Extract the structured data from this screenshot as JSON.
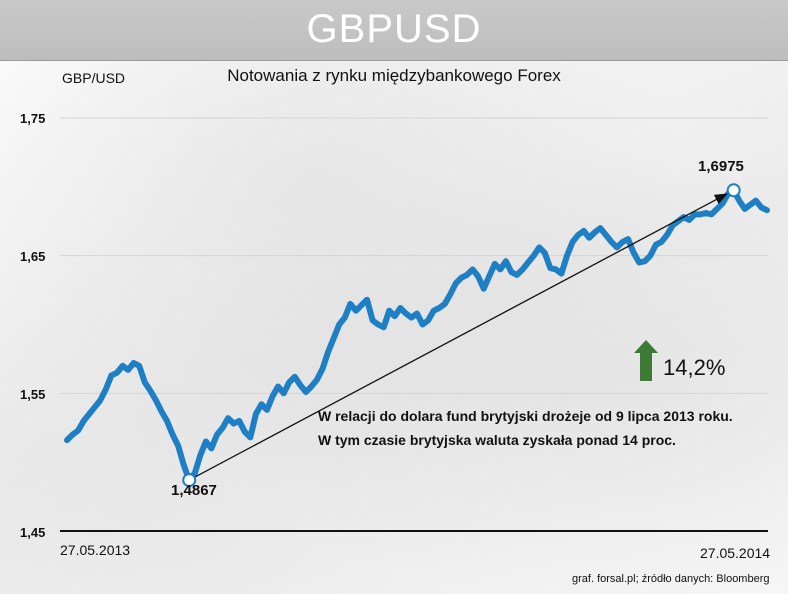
{
  "header": {
    "title": "GBPUSD"
  },
  "chart_data": {
    "type": "line",
    "title": "Notowania z rynku międzybankowego Forex",
    "ylabel": "GBP/USD",
    "ylim": [
      1.45,
      1.75
    ],
    "yticks": [
      "1,75",
      "1,65",
      "1,55",
      "1,45"
    ],
    "xlabel": "",
    "x_start_label": "27.05.2013",
    "x_end_label": "27.05.2014",
    "grid": "horizontal",
    "line_color": "#1f7fc4",
    "series": [
      {
        "values": [
          1.516,
          1.52,
          1.523,
          1.53,
          1.535,
          1.54,
          1.545,
          1.553,
          1.563,
          1.565,
          1.57,
          1.567,
          1.572,
          1.57,
          1.558,
          1.552,
          1.545,
          1.537,
          1.53,
          1.52,
          1.512,
          1.498,
          1.487,
          1.492,
          1.505,
          1.515,
          1.51,
          1.52,
          1.525,
          1.532,
          1.528,
          1.53,
          1.522,
          1.518,
          1.535,
          1.542,
          1.538,
          1.548,
          1.555,
          1.55,
          1.558,
          1.562,
          1.556,
          1.551,
          1.555,
          1.56,
          1.568,
          1.58,
          1.59,
          1.6,
          1.605,
          1.615,
          1.61,
          1.614,
          1.618,
          1.603,
          1.6,
          1.598,
          1.61,
          1.606,
          1.612,
          1.608,
          1.605,
          1.608,
          1.6,
          1.603,
          1.61,
          1.612,
          1.615,
          1.622,
          1.63,
          1.634,
          1.636,
          1.64,
          1.635,
          1.626,
          1.635,
          1.644,
          1.64,
          1.646,
          1.638,
          1.636,
          1.64,
          1.645,
          1.65,
          1.656,
          1.652,
          1.641,
          1.64,
          1.637,
          1.65,
          1.66,
          1.665,
          1.668,
          1.663,
          1.667,
          1.67,
          1.665,
          1.66,
          1.656,
          1.66,
          1.662,
          1.652,
          1.645,
          1.646,
          1.65,
          1.658,
          1.66,
          1.665,
          1.672,
          1.675,
          1.678,
          1.676,
          1.68,
          1.68,
          1.681,
          1.68,
          1.684,
          1.688,
          1.695,
          1.6975,
          1.69,
          1.684,
          1.687,
          1.69,
          1.685,
          1.683
        ]
      }
    ],
    "annotations": {
      "start_value_label": "1,4867",
      "end_value_label": "1,6975",
      "change_label": "14,2%",
      "change_direction": "up",
      "change_color": "#3d7a35",
      "note_line1": "W relacji do dolara fund brytyjski drożeje od 9 lipca 2013 roku.",
      "note_line2": "W tym czasie brytyjska waluta zyskała ponad 14 proc."
    }
  },
  "footer": {
    "source": "graf. forsal.pl;  źródło danych: Bloomberg"
  }
}
